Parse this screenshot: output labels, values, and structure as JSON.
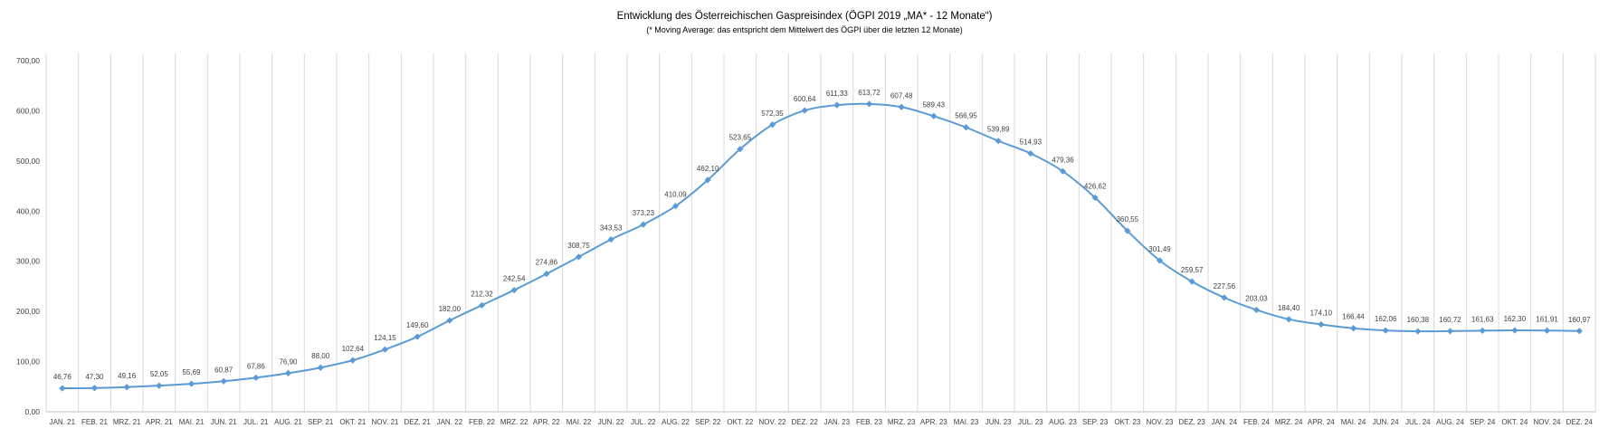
{
  "chart_data": {
    "type": "line",
    "title": "Entwicklung des Österreichischen Gaspreisindex (ÖGPI 2019 „MA* - 12 Monate“)",
    "subtitle": "(* Moving Average: das entspricht dem Mittelwert des ÖGPI über die letzten 12 Monate)",
    "xlabel": "",
    "ylabel": "",
    "ylim": [
      0,
      700
    ],
    "yticks": [
      "0,00",
      "100,00",
      "200,00",
      "300,00",
      "400,00",
      "500,00",
      "600,00",
      "700,00"
    ],
    "grid": "vertical",
    "legend": "none",
    "line_color": "#5b9bd5",
    "categories": [
      "JAN. 21",
      "FEB. 21",
      "MRZ. 21",
      "APR. 21",
      "MAI. 21",
      "JUN. 21",
      "JUL. 21",
      "AUG. 21",
      "SEP. 21",
      "OKT. 21",
      "NOV. 21",
      "DEZ. 21",
      "JAN. 22",
      "FEB. 22",
      "MRZ. 22",
      "APR. 22",
      "MAI. 22",
      "JUN. 22",
      "JUL. 22",
      "AUG. 22",
      "SEP. 22",
      "OKT. 22",
      "NOV. 22",
      "DEZ. 22",
      "JAN. 23",
      "FEB. 23",
      "MRZ. 23",
      "APR. 23",
      "MAI. 23",
      "JUN. 23",
      "JUL. 23",
      "AUG. 23",
      "SEP. 23",
      "OKT. 23",
      "NOV. 23",
      "DEZ. 23",
      "JAN. 24",
      "FEB. 24",
      "MRZ. 24",
      "APR. 24",
      "MAI. 24",
      "JUN. 24",
      "JUL. 24",
      "AUG. 24",
      "SEP. 24",
      "OKT. 24",
      "NOV. 24",
      "DEZ. 24"
    ],
    "values": [
      46.76,
      47.3,
      49.16,
      52.05,
      55.69,
      60.87,
      67.86,
      76.9,
      88.0,
      102.64,
      124.15,
      149.6,
      182.0,
      212.32,
      242.54,
      274.86,
      308.75,
      343.53,
      373.23,
      410.09,
      462.1,
      523.65,
      572.35,
      600.64,
      611.33,
      613.72,
      607.48,
      589.43,
      566.95,
      539.89,
      514.93,
      479.36,
      426.62,
      360.55,
      301.49,
      259.57,
      227.56,
      203.03,
      184.4,
      174.1,
      166.44,
      162.06,
      160.38,
      160.72,
      161.63,
      162.3,
      161.91,
      160.97
    ],
    "labels": [
      "46,76",
      "47,30",
      "49,16",
      "52,05",
      "55,69",
      "60,87",
      "67,86",
      "76,90",
      "88,00",
      "102,64",
      "124,15",
      "149,60",
      "182,00",
      "212,32",
      "242,54",
      "274,86",
      "308,75",
      "343,53",
      "373,23",
      "410,09",
      "462,10",
      "523,65",
      "572,35",
      "600,64",
      "611,33",
      "613,72",
      "607,48",
      "589,43",
      "566,95",
      "539,89",
      "514,93",
      "479,36",
      "426,62",
      "360,55",
      "301,49",
      "259,57",
      "227,56",
      "203,03",
      "184,40",
      "174,10",
      "166,44",
      "162,06",
      "160,38",
      "160,72",
      "161,63",
      "162,30",
      "161,91",
      "160,97"
    ]
  }
}
